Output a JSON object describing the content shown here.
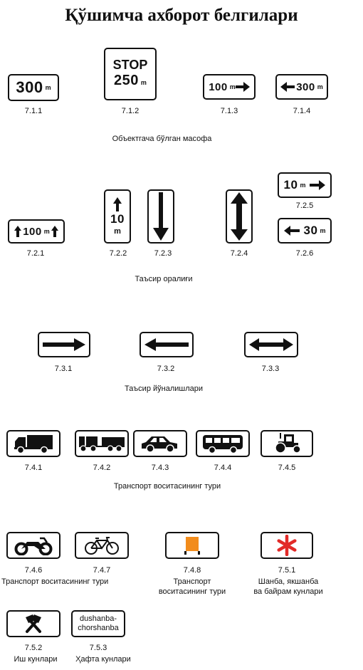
{
  "title": "Қўшимча ахборот белгилари",
  "sections": {
    "s1": "Объектгача бўлган масофа",
    "s2": "Таъсир оралиғи",
    "s3": "Таъсир йўналишлари",
    "s4": "Транспорт воситасининг тури",
    "s5_746": "Транспорт воситасининг тури",
    "s5_748a": "Транспорт",
    "s5_748b": "воситасининг тури",
    "s5_751a": "Шанба, якшанба",
    "s5_751b": "ва байрам кунлари",
    "s6_752": "Иш кунлари",
    "s6_753": "Ҳафта кунлари"
  },
  "signs": {
    "s711": {
      "code": "7.1.1",
      "num": "300",
      "unit": "m"
    },
    "s712": {
      "code": "7.1.2",
      "stop": "STOP",
      "num": "250",
      "unit": "m"
    },
    "s713": {
      "code": "7.1.3",
      "num": "100",
      "unit": "m"
    },
    "s714": {
      "code": "7.1.4",
      "num": "300",
      "unit": "m"
    },
    "s721": {
      "code": "7.2.1",
      "num": "100",
      "unit": "m"
    },
    "s722": {
      "code": "7.2.2",
      "num": "10",
      "unit": "m"
    },
    "s723": {
      "code": "7.2.3"
    },
    "s724": {
      "code": "7.2.4"
    },
    "s725": {
      "code": "7.2.5",
      "num": "10",
      "unit": "m"
    },
    "s726": {
      "code": "7.2.6",
      "num": "30",
      "unit": "m"
    },
    "s731": {
      "code": "7.3.1"
    },
    "s732": {
      "code": "7.3.2"
    },
    "s733": {
      "code": "7.3.3"
    },
    "s741": {
      "code": "7.4.1"
    },
    "s742": {
      "code": "7.4.2"
    },
    "s743": {
      "code": "7.4.3"
    },
    "s744": {
      "code": "7.4.4"
    },
    "s745": {
      "code": "7.4.5"
    },
    "s746": {
      "code": "7.4.6"
    },
    "s747": {
      "code": "7.4.7"
    },
    "s748": {
      "code": "7.4.8"
    },
    "s751": {
      "code": "7.5.1"
    },
    "s752": {
      "code": "7.5.2"
    },
    "s753": {
      "code": "7.5.3",
      "line1": "dushanba-",
      "line2": "chorshanba"
    }
  },
  "colors": {
    "orange": "#f28c1c",
    "red": "#e22a28"
  }
}
